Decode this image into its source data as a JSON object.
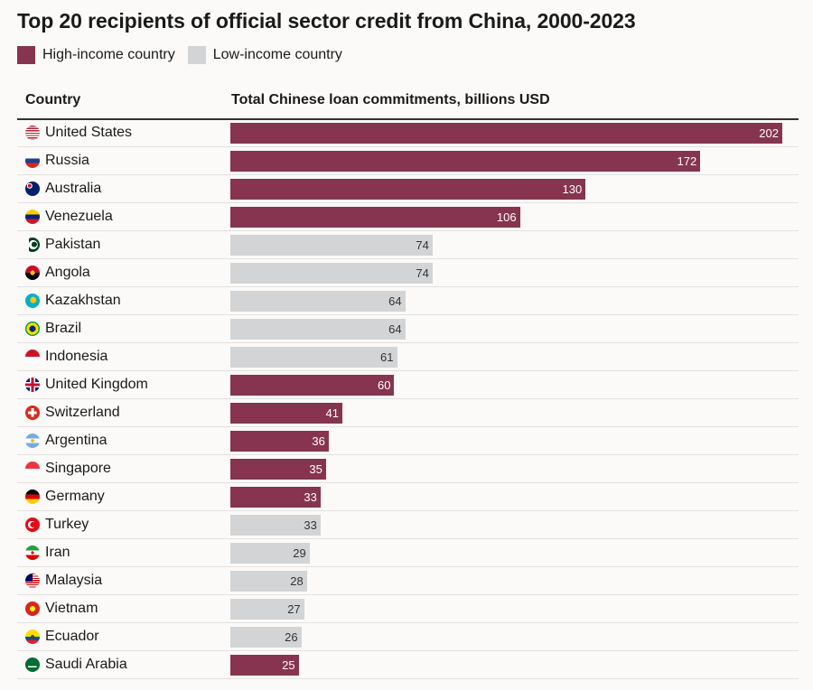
{
  "chart_data": {
    "type": "bar",
    "orientation": "horizontal",
    "title": "Top 20 recipients of official sector credit from China, 2000-2023",
    "column_headers": {
      "country": "Country",
      "value": "Total Chinese loan commitments, billions USD"
    },
    "legend": [
      {
        "key": "high",
        "label": "High-income country",
        "color": "#86344f"
      },
      {
        "key": "low",
        "label": "Low-income country",
        "color": "#d2d4d6"
      }
    ],
    "xlim": [
      0,
      202
    ],
    "rows": [
      {
        "country": "United States",
        "value": 202,
        "group": "high",
        "flag": "us-flag-icon"
      },
      {
        "country": "Russia",
        "value": 172,
        "group": "high",
        "flag": "russia-flag-icon"
      },
      {
        "country": "Australia",
        "value": 130,
        "group": "high",
        "flag": "australia-flag-icon"
      },
      {
        "country": "Venezuela",
        "value": 106,
        "group": "high",
        "flag": "venezuela-flag-icon"
      },
      {
        "country": "Pakistan",
        "value": 74,
        "group": "low",
        "flag": "pakistan-flag-icon"
      },
      {
        "country": "Angola",
        "value": 74,
        "group": "low",
        "flag": "angola-flag-icon"
      },
      {
        "country": "Kazakhstan",
        "value": 64,
        "group": "low",
        "flag": "kazakhstan-flag-icon"
      },
      {
        "country": "Brazil",
        "value": 64,
        "group": "low",
        "flag": "brazil-flag-icon"
      },
      {
        "country": "Indonesia",
        "value": 61,
        "group": "low",
        "flag": "indonesia-flag-icon"
      },
      {
        "country": "United Kingdom",
        "value": 60,
        "group": "high",
        "flag": "uk-flag-icon"
      },
      {
        "country": "Switzerland",
        "value": 41,
        "group": "high",
        "flag": "switzerland-flag-icon"
      },
      {
        "country": "Argentina",
        "value": 36,
        "group": "high",
        "flag": "argentina-flag-icon"
      },
      {
        "country": "Singapore",
        "value": 35,
        "group": "high",
        "flag": "singapore-flag-icon"
      },
      {
        "country": "Germany",
        "value": 33,
        "group": "high",
        "flag": "germany-flag-icon"
      },
      {
        "country": "Turkey",
        "value": 33,
        "group": "low",
        "flag": "turkey-flag-icon"
      },
      {
        "country": "Iran",
        "value": 29,
        "group": "low",
        "flag": "iran-flag-icon"
      },
      {
        "country": "Malaysia",
        "value": 28,
        "group": "low",
        "flag": "malaysia-flag-icon"
      },
      {
        "country": "Vietnam",
        "value": 27,
        "group": "low",
        "flag": "vietnam-flag-icon"
      },
      {
        "country": "Ecuador",
        "value": 26,
        "group": "low",
        "flag": "ecuador-flag-icon"
      },
      {
        "country": "Saudi Arabia",
        "value": 25,
        "group": "high",
        "flag": "saudi-arabia-flag-icon"
      }
    ]
  }
}
